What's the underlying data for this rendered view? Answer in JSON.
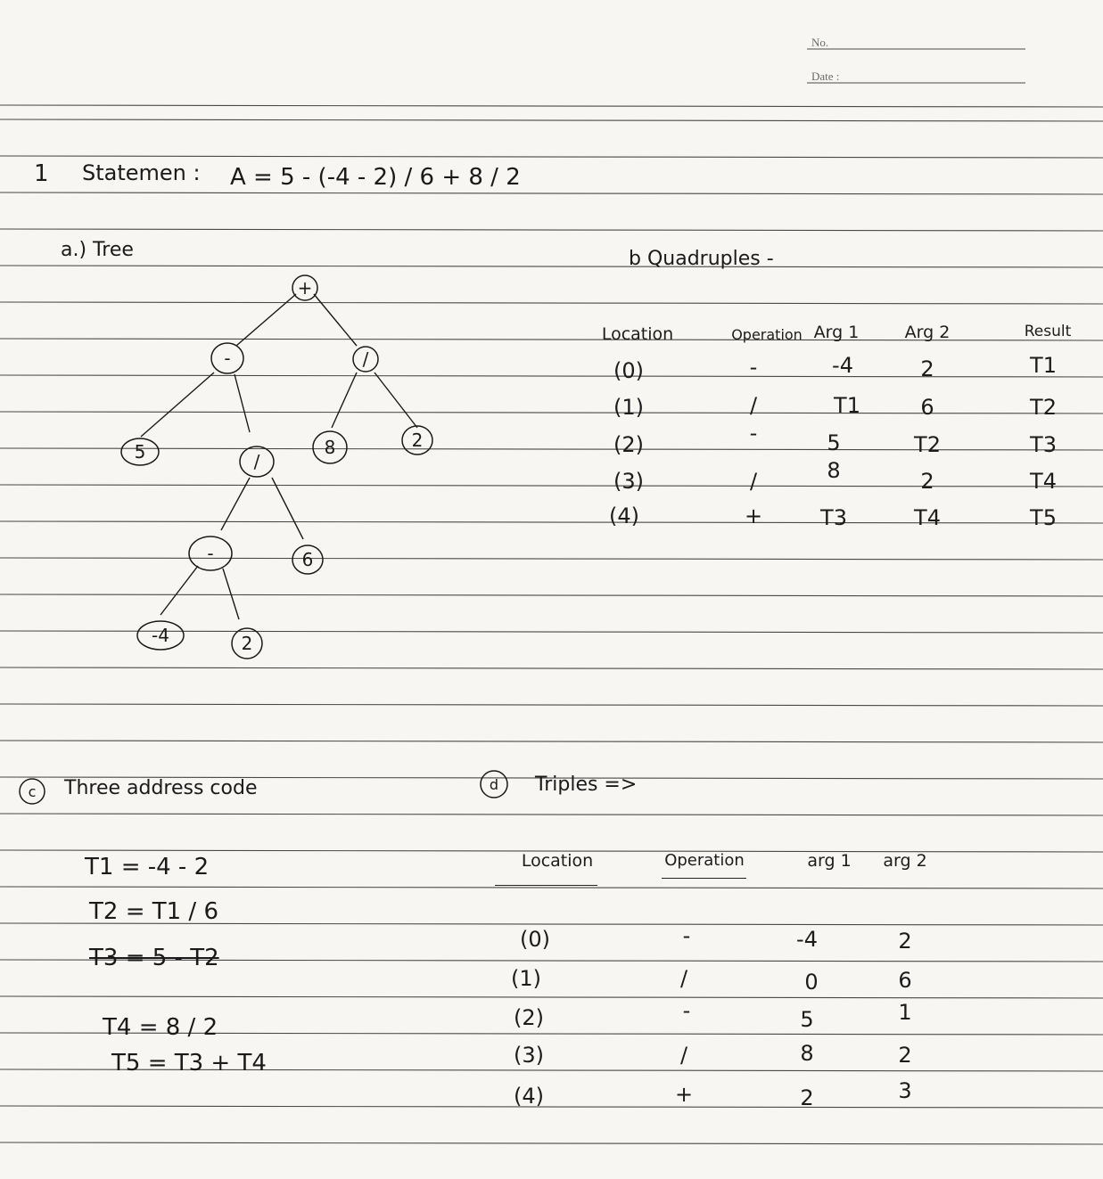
{
  "header": {
    "no_label": "No.",
    "date_label": "Date :"
  },
  "question_number": "1",
  "statement": {
    "label": "Statemen :",
    "expression": "A = 5 - (-4 - 2) / 6 + 8 / 2"
  },
  "section_a": {
    "label": "a.) Tree"
  },
  "tree": {
    "root": "+",
    "nodes": [
      "+",
      "-",
      "/",
      "5",
      "/",
      "8",
      "2",
      "-",
      "6",
      "-4",
      "2"
    ]
  },
  "section_b": {
    "label": "b  Quadruples -",
    "columns": [
      "Location",
      "Operation",
      "Arg 1",
      "Arg 2",
      "Result"
    ],
    "rows": [
      [
        "(0)",
        "-",
        "-4",
        "2",
        "T1"
      ],
      [
        "(1)",
        "/",
        "T1",
        "6",
        "T2"
      ],
      [
        "(2)",
        "-",
        "5",
        "T2",
        "T3"
      ],
      [
        "(3)",
        "/",
        "8",
        "2",
        "T4"
      ],
      [
        "(4)",
        "+",
        "T3",
        "T4",
        "T5"
      ]
    ]
  },
  "section_c": {
    "label": "Three address code",
    "lines": [
      "T1 = -4 - 2",
      "T2 = T1 / 6",
      "T3 = 5 - T2",
      "T4 = 8 / 2",
      "T5 = T3 + T4"
    ]
  },
  "section_d": {
    "label": "Triples =>",
    "columns": [
      "Location",
      "Operation",
      "arg 1",
      "arg 2"
    ],
    "rows": [
      [
        "(0)",
        "-",
        "-4",
        "2"
      ],
      [
        "(1)",
        "/",
        "0",
        "6"
      ],
      [
        "(2)",
        "-",
        "5",
        "1"
      ],
      [
        "(3)",
        "/",
        "8",
        "2"
      ],
      [
        "(4)",
        "+",
        "2",
        "3"
      ]
    ]
  },
  "colors": {
    "paper": "#f7f6f3",
    "rule": "#2b2b2b",
    "ink": "#1a1a1a"
  }
}
